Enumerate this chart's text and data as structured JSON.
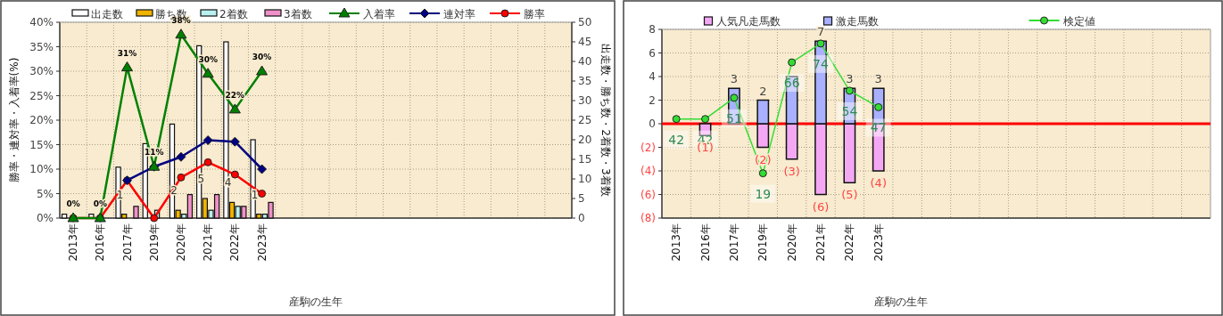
{
  "chart_data": [
    {
      "type": "bar",
      "xlabel": "産駒の生年",
      "ylabel": "勝率・連対率・入着率(%)",
      "y2label": "出走数・勝ち数・2着数・3着数",
      "legend": "top",
      "grid": true,
      "categories": [
        "2013年",
        "2016年",
        "2017年",
        "2019年",
        "2020年",
        "2021年",
        "2022年",
        "2023年",
        null,
        null,
        null,
        null,
        null,
        null,
        null,
        null,
        null,
        null,
        null
      ],
      "ylim": [
        0,
        40
      ],
      "yticks": [
        {
          "value": 0,
          "label": "0%"
        },
        {
          "value": 5,
          "label": "5%"
        },
        {
          "value": 10,
          "label": "10%"
        },
        {
          "value": 15,
          "label": "15%"
        },
        {
          "value": 20,
          "label": "20%"
        },
        {
          "value": 25,
          "label": "25%"
        },
        {
          "value": 30,
          "label": "30%"
        },
        {
          "value": 35,
          "label": "35%"
        },
        {
          "value": 40,
          "label": "40%"
        }
      ],
      "y2lim": [
        0,
        50
      ],
      "y2ticks": [
        0,
        5,
        10,
        15,
        20,
        25,
        30,
        35,
        40,
        45,
        50
      ],
      "series": [
        {
          "name": "出走数",
          "axis": "y2",
          "color": "#ffffff",
          "values": [
            1,
            1,
            13,
            19,
            24,
            44,
            45,
            20,
            null,
            null,
            null,
            null,
            null,
            null,
            null,
            null,
            null,
            null,
            null
          ]
        },
        {
          "name": "勝ち数",
          "axis": "y2",
          "color": "#f0b400",
          "values": [
            0,
            0,
            1,
            0,
            2,
            5,
            4,
            1,
            null,
            null,
            null,
            null,
            null,
            null,
            null,
            null,
            null,
            null,
            null
          ],
          "value_labels": [
            null,
            null,
            "1",
            null,
            "2",
            "5",
            "4",
            "1",
            null,
            null,
            null,
            null,
            null,
            null,
            null,
            null,
            null,
            null,
            null
          ]
        },
        {
          "name": "2着数",
          "axis": "y2",
          "color": "#b8f0f0",
          "values": [
            0,
            0,
            0,
            2,
            1,
            2,
            3,
            1,
            null,
            null,
            null,
            null,
            null,
            null,
            null,
            null,
            null,
            null,
            null
          ]
        },
        {
          "name": "3着数",
          "axis": "y2",
          "color": "#f090c8",
          "values": [
            0,
            0,
            3,
            0,
            6,
            6,
            3,
            4,
            null,
            null,
            null,
            null,
            null,
            null,
            null,
            null,
            null,
            null,
            null
          ]
        },
        {
          "name": "入着率",
          "type": "line",
          "color": "#008000",
          "marker": "triangle",
          "values": [
            0,
            0,
            30.8,
            10.5,
            37.5,
            29.5,
            22.2,
            30,
            null,
            null,
            null,
            null,
            null,
            null,
            null,
            null,
            null,
            null,
            null
          ],
          "value_labels": [
            "0%",
            "0%",
            "31%",
            "11%",
            "38%",
            "30%",
            "22%",
            "30%",
            null,
            null,
            null,
            null,
            null,
            null,
            null,
            null,
            null,
            null,
            null
          ]
        },
        {
          "name": "連対率",
          "type": "line",
          "color": "#000080",
          "marker": "diamond",
          "values": [
            null,
            null,
            7.7,
            10.5,
            12.5,
            15.9,
            15.6,
            10,
            null,
            null,
            null,
            null,
            null,
            null,
            null,
            null,
            null,
            null,
            null
          ]
        },
        {
          "name": "勝率",
          "type": "line",
          "color": "#ff0000",
          "marker": "circle",
          "values": [
            0,
            0,
            7.7,
            0,
            8.3,
            11.4,
            8.9,
            5,
            null,
            null,
            null,
            null,
            null,
            null,
            null,
            null,
            null,
            null,
            null
          ]
        }
      ]
    },
    {
      "type": "bar",
      "xlabel": "産駒の生年",
      "legend": "top",
      "grid": true,
      "stacked": true,
      "categories": [
        "2013年",
        "2016年",
        "2017年",
        "2019年",
        "2020年",
        "2021年",
        "2022年",
        "2023年",
        null,
        null,
        null,
        null,
        null,
        null,
        null,
        null,
        null,
        null,
        null
      ],
      "ylim": [
        -8,
        8
      ],
      "yticks": [
        {
          "value": -8,
          "label": "(8)"
        },
        {
          "value": -6,
          "label": "(6)"
        },
        {
          "value": -4,
          "label": "(4)"
        },
        {
          "value": -2,
          "label": "(2)"
        },
        0,
        2,
        4,
        6,
        8
      ],
      "y2lim": [
        0,
        80
      ],
      "ref_lines": [
        {
          "axis": "y",
          "value": 0,
          "color": "#ff0000"
        }
      ],
      "series": [
        {
          "name": "人気凡走馬数",
          "color": "#f4a8f4",
          "values": [
            0,
            -1,
            0,
            -2,
            -3,
            -6,
            -5,
            -4,
            null,
            null,
            null,
            null,
            null,
            null,
            null,
            null,
            null,
            null,
            null
          ],
          "value_labels": [
            null,
            "(1)",
            null,
            "(2)",
            "(3)",
            "(6)",
            "(5)",
            "(4)",
            null,
            null,
            null,
            null,
            null,
            null,
            null,
            null,
            null,
            null,
            null
          ]
        },
        {
          "name": "激走馬数",
          "color": "#a8b0ff",
          "values": [
            0,
            0,
            3,
            2,
            4,
            7,
            3,
            3,
            null,
            null,
            null,
            null,
            null,
            null,
            null,
            null,
            null,
            null,
            null
          ],
          "value_labels": [
            null,
            null,
            "3",
            "2",
            null,
            "7",
            "3",
            "3",
            null,
            null,
            null,
            null,
            null,
            null,
            null,
            null,
            null,
            null,
            null
          ]
        },
        {
          "name": "検定値",
          "type": "line",
          "axis": "y2",
          "color": "#33dd33",
          "marker": "circle",
          "values": [
            42,
            42,
            51,
            19,
            66,
            74,
            54,
            47,
            null,
            null,
            null,
            null,
            null,
            null,
            null,
            null,
            null,
            null,
            null
          ],
          "data_labels": true
        }
      ]
    }
  ]
}
